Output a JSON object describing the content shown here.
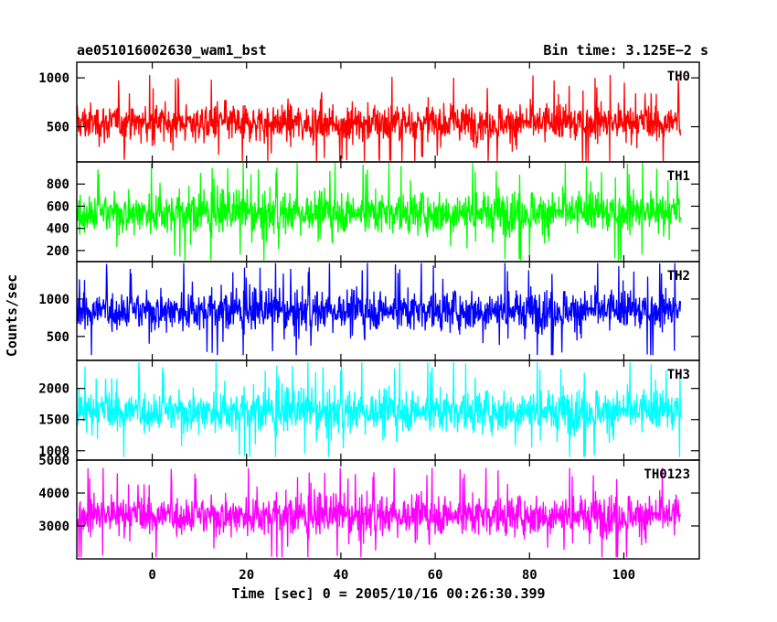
{
  "chart_data": {
    "type": "line",
    "title_left": "ae051016002630_wam1_bst",
    "title_right": "Bin time: 3.125E−2 s",
    "xlabel": "Time [sec] 0 = 2005/10/16 00:26:30.399",
    "ylabel": "Counts/sec",
    "xlim": [
      -16,
      116
    ],
    "xticks": [
      0,
      20,
      40,
      60,
      80,
      100
    ],
    "data_x_range": [
      -16,
      112
    ],
    "panels": [
      {
        "name": "TH0",
        "color": "#ff0000",
        "ylim": [
          140,
          1160
        ],
        "yticks": [
          500,
          1000
        ],
        "mean": 540,
        "spread": 110,
        "min": 150,
        "max": 1150
      },
      {
        "name": "TH1",
        "color": "#00ff00",
        "ylim": [
          100,
          1000
        ],
        "yticks": [
          200,
          400,
          600,
          800
        ],
        "mean": 545,
        "spread": 105,
        "min": 110,
        "max": 990
      },
      {
        "name": "TH2",
        "color": "#0000ff",
        "ylim": [
          180,
          1500
        ],
        "yticks": [
          500,
          1000
        ],
        "mean": 850,
        "spread": 150,
        "min": 250,
        "max": 1480
      },
      {
        "name": "TH3",
        "color": "#00ffff",
        "ylim": [
          850,
          2450
        ],
        "yticks": [
          1000,
          1500,
          2000
        ],
        "mean": 1640,
        "spread": 190,
        "min": 900,
        "max": 2420
      },
      {
        "name": "TH0123",
        "color": "#ff00ff",
        "ylim": [
          2000,
          5000
        ],
        "yticks": [
          3000,
          4000,
          5000
        ],
        "mean": 3330,
        "spread": 340,
        "min": 2050,
        "max": 4760
      }
    ]
  }
}
